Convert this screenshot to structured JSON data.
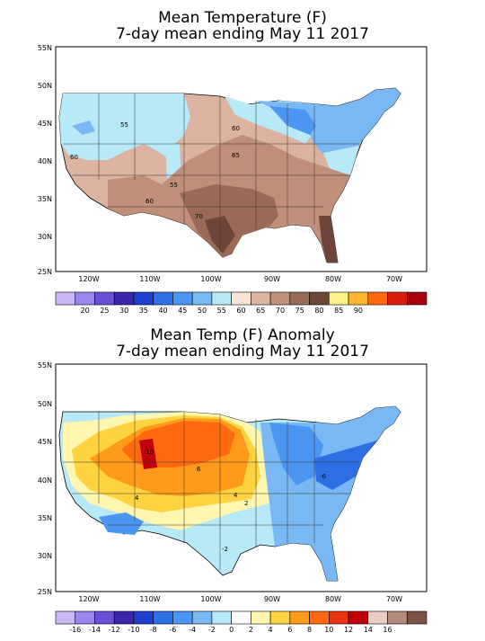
{
  "panels": [
    {
      "id": "temperature",
      "title_line1": "Mean Temperature (F)",
      "title_line2": "7-day mean ending May 11 2017",
      "lat_labels": [
        "55N",
        "50N",
        "45N",
        "40N",
        "35N",
        "30N",
        "25N"
      ],
      "lon_labels": [
        "120W",
        "110W",
        "100W",
        "90W",
        "80W",
        "70W"
      ],
      "contour_labels": [
        "55",
        "60",
        "60",
        "65",
        "55",
        "60",
        "70"
      ],
      "colorbar": {
        "colors": [
          "#c9b8f5",
          "#9b86ee",
          "#6a4fd8",
          "#3a26a8",
          "#1f3fcf",
          "#2f6fe6",
          "#4a96f0",
          "#79b8f3",
          "#b7e9f7",
          "#f5e3d8",
          "#dcb3a0",
          "#c08e7b",
          "#9a6957",
          "#6f4539",
          "#fff08a",
          "#ffb52e",
          "#ff6a10",
          "#d81c0b",
          "#a8000c"
        ],
        "tick_labels": [
          "20",
          "25",
          "30",
          "35",
          "40",
          "45",
          "50",
          "55",
          "60",
          "65",
          "70",
          "75",
          "80",
          "85",
          "90"
        ]
      }
    },
    {
      "id": "anomaly",
      "title_line1": "Mean Temp (F) Anomaly",
      "title_line2": "7-day mean ending May 11 2017",
      "lat_labels": [
        "55N",
        "50N",
        "45N",
        "40N",
        "35N",
        "30N",
        "25N"
      ],
      "lon_labels": [
        "120W",
        "110W",
        "100W",
        "90W",
        "80W",
        "70W"
      ],
      "contour_labels": [
        "6",
        "4",
        "2",
        "4",
        "-2",
        "-6",
        "10"
      ],
      "colorbar": {
        "colors": [
          "#c9b8f5",
          "#9b86ee",
          "#6a4fd8",
          "#3a26a8",
          "#1f3fcf",
          "#2f6fe6",
          "#4a96f0",
          "#79b8f3",
          "#b7e9f7",
          "#ffffff",
          "#fff6b0",
          "#ffd23f",
          "#ff9a1a",
          "#ff6a10",
          "#e83410",
          "#c0000b",
          "#e8cfc2",
          "#b48a7c",
          "#7a5248"
        ],
        "tick_labels": [
          "-16",
          "-14",
          "-12",
          "-10",
          "-8",
          "-6",
          "-4",
          "-2",
          "0",
          "2",
          "4",
          "6",
          "8",
          "10",
          "12",
          "14",
          "16"
        ]
      }
    }
  ]
}
